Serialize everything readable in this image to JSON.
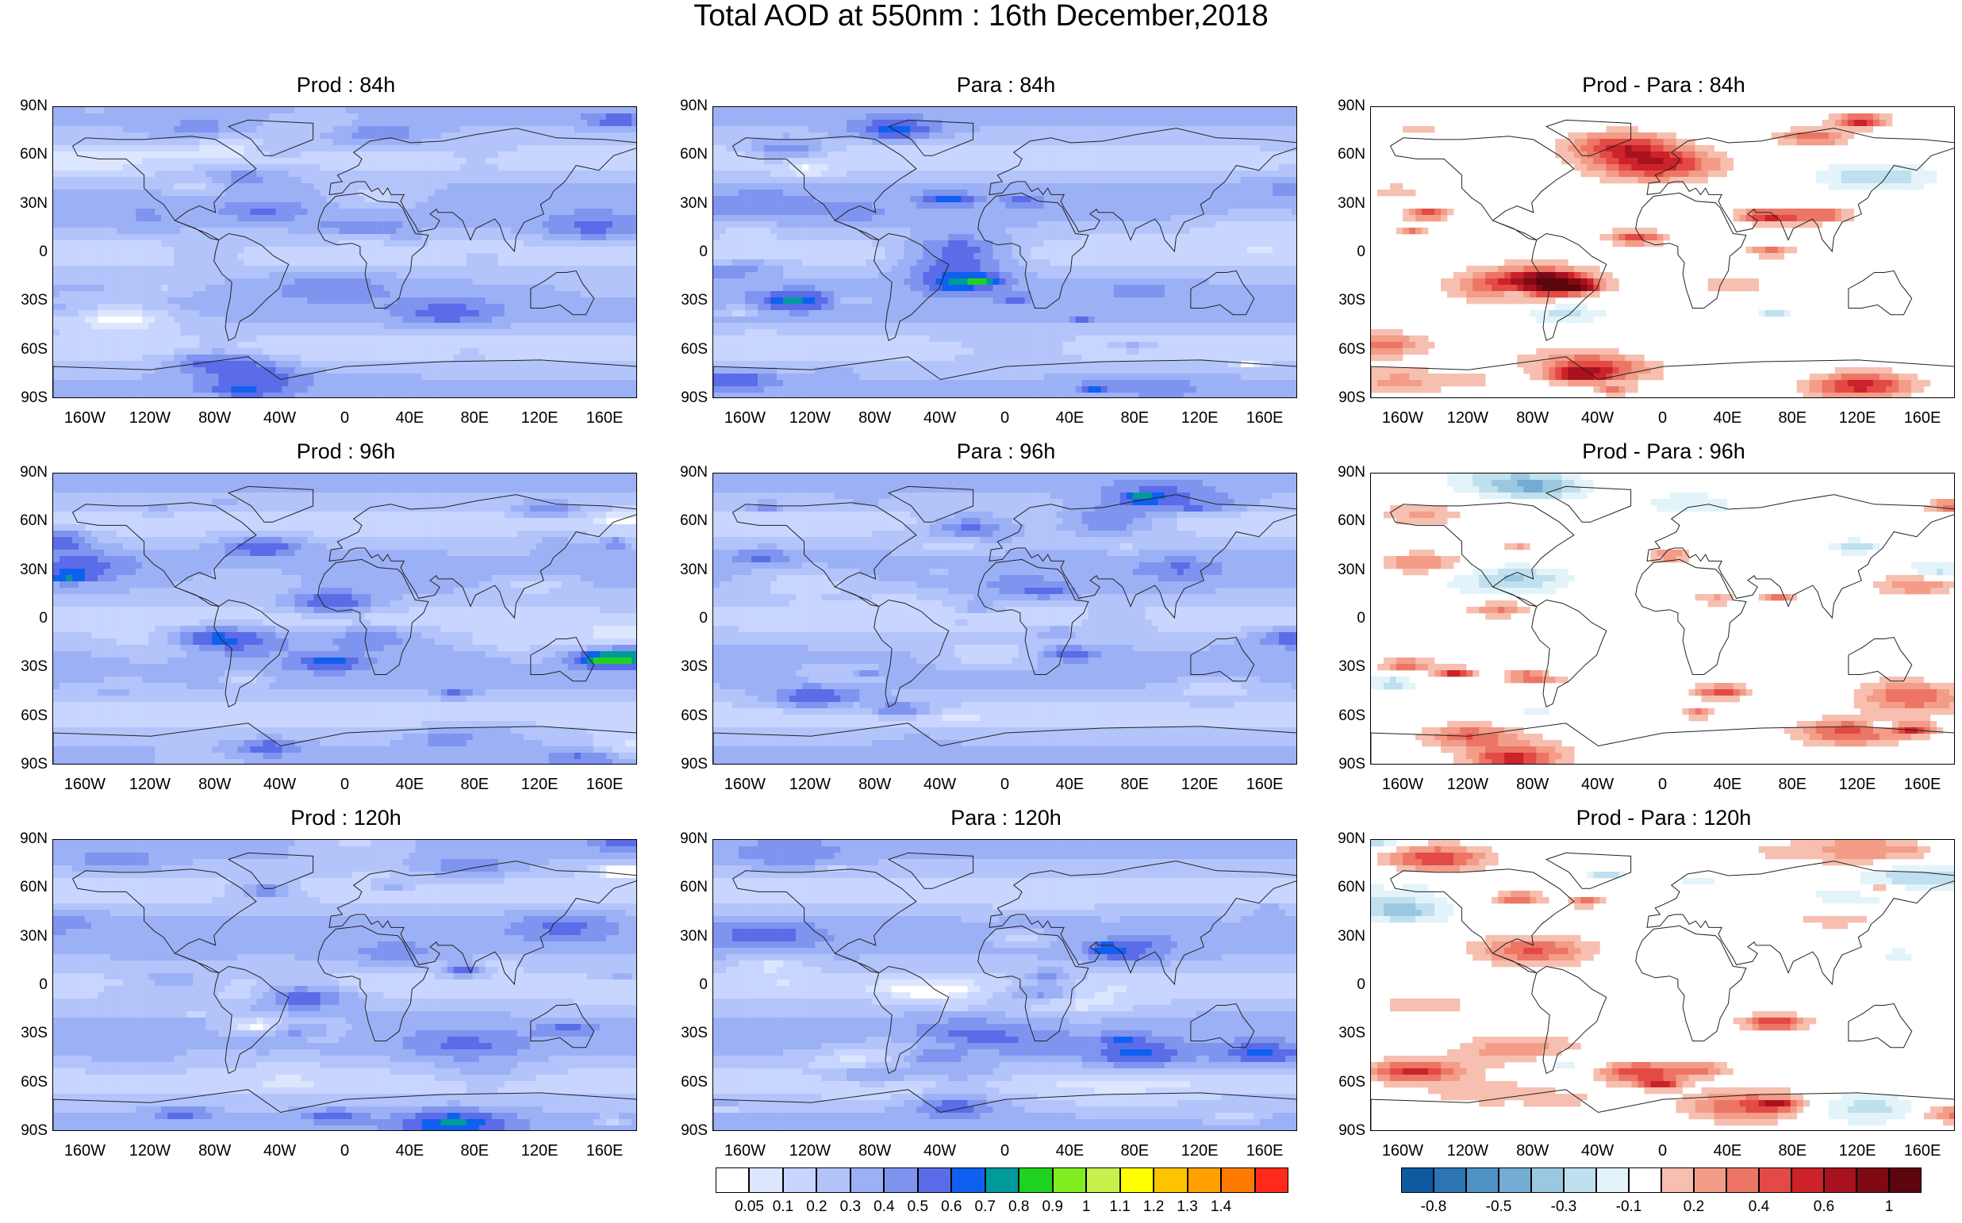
{
  "title": "Total AOD at 550nm : 16th December,2018",
  "panels": [
    {
      "title": "Prod : 84h",
      "type": "aod",
      "seed": 11
    },
    {
      "title": "Para : 84h",
      "type": "aod",
      "seed": 23
    },
    {
      "title": "Prod - Para : 84h",
      "type": "diff",
      "seed": 37
    },
    {
      "title": "Prod : 96h",
      "type": "aod",
      "seed": 41
    },
    {
      "title": "Para : 96h",
      "type": "aod",
      "seed": 53
    },
    {
      "title": "Prod - Para : 96h",
      "type": "diff",
      "seed": 67
    },
    {
      "title": "Prod : 120h",
      "type": "aod",
      "seed": 71
    },
    {
      "title": "Para : 120h",
      "type": "aod",
      "seed": 83
    },
    {
      "title": "Prod - Para : 120h",
      "type": "diff",
      "seed": 97
    }
  ],
  "lat_labels": [
    "90N",
    "60N",
    "30N",
    "0",
    "30S",
    "60S",
    "90S"
  ],
  "lon_labels": [
    "160W",
    "120W",
    "80W",
    "40W",
    "0",
    "40E",
    "80E",
    "120E",
    "160E"
  ],
  "colorbars": {
    "aod": {
      "labels": [
        "0.05",
        "0.1",
        "0.2",
        "0.3",
        "0.4",
        "0.5",
        "0.6",
        "0.7",
        "0.8",
        "0.9",
        "1",
        "1.1",
        "1.2",
        "1.3",
        "1.4"
      ],
      "colors": [
        "#ffffff",
        "#dde6ff",
        "#c8d6ff",
        "#b3c4fb",
        "#9cb0f6",
        "#7f94ef",
        "#5a6ce8",
        "#0f60f0",
        "#009a9a",
        "#1fd21f",
        "#7fee1f",
        "#c8f04a",
        "#ffff00",
        "#ffc400",
        "#ffa000",
        "#ff7a00",
        "#ff2a1a"
      ]
    },
    "diff": {
      "labels": [
        "-0.8",
        "-0.5",
        "-0.3",
        "-0.1",
        "0.2",
        "0.4",
        "0.6",
        "1"
      ],
      "colors": [
        "#0d5aa0",
        "#2b75b5",
        "#4f92c6",
        "#74acd3",
        "#9bc8e0",
        "#bfe0ee",
        "#e3f3fa",
        "#ffffff",
        "#f6bfb0",
        "#f39c88",
        "#ec7565",
        "#e34a45",
        "#cc2229",
        "#a8111e",
        "#800a14",
        "#5c050c"
      ]
    }
  }
}
